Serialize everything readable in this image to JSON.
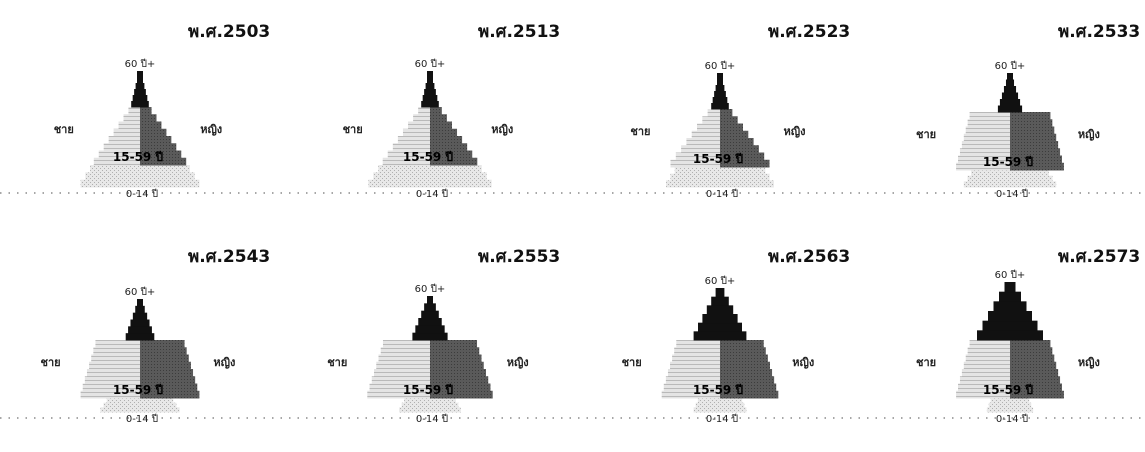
{
  "chart_data": [
    {
      "type": "bar",
      "title": "พ.ศ.2503",
      "labels": {
        "male": "ชาย",
        "female": "หญิง",
        "age_old": "60 ปี+",
        "age_working": "15-59 ปี",
        "age_young": "0-14 ปี"
      },
      "groups": [
        "0-14",
        "15-59",
        "60+"
      ],
      "values": [
        5.4,
        4.2,
        0.8
      ]
    },
    {
      "type": "bar",
      "title": "พ.ศ.2513",
      "labels": {
        "male": "ชาย",
        "female": "หญิง",
        "age_old": "60 ปี+",
        "age_working": "15-59 ปี",
        "age_young": "0-14 ปี"
      },
      "groups": [
        "0-14",
        "15-59",
        "60+"
      ],
      "values": [
        5.6,
        4.3,
        0.8
      ]
    },
    {
      "type": "bar",
      "title": "พ.ศ.2523",
      "labels": {
        "male": "ชาย",
        "female": "หญิง",
        "age_old": "60 ปี+",
        "age_working": "15-59 ปี",
        "age_young": "0-14 ปี"
      },
      "groups": [
        "0-14",
        "15-59",
        "60+"
      ],
      "values": [
        4.9,
        4.5,
        0.8
      ]
    },
    {
      "type": "bar",
      "title": "พ.ศ.2533",
      "labels": {
        "male": "ชาย",
        "female": "หญิง",
        "age_old": "60 ปี+",
        "age_working": "15-59 ปี",
        "age_young": "0-14 ปี"
      },
      "groups": [
        "0-14",
        "15-59",
        "60+"
      ],
      "values": [
        4.2,
        4.9,
        1.1
      ]
    },
    {
      "type": "bar",
      "title": "พ.ศ.2543",
      "labels": {
        "male": "ชาย",
        "female": "หญิง",
        "age_old": "60 ปี+",
        "age_working": "15-59 ปี",
        "age_young": "0-14 ปี"
      },
      "groups": [
        "0-14",
        "15-59",
        "60+"
      ],
      "values": [
        3.6,
        5.4,
        1.3
      ]
    },
    {
      "type": "bar",
      "title": "พ.ศ.2553",
      "labels": {
        "male": "ชาย",
        "female": "หญิง",
        "age_old": "60 ปี+",
        "age_working": "15-59 ปี",
        "age_young": "0-14 ปี"
      },
      "groups": [
        "0-14",
        "15-59",
        "60+"
      ],
      "values": [
        2.8,
        5.7,
        1.6
      ]
    },
    {
      "type": "bar",
      "title": "พ.ศ.2563",
      "labels": {
        "male": "ชาย",
        "female": "หญิง",
        "age_old": "60 ปี+",
        "age_working": "15-59 ปี",
        "age_young": "0-14 ปี"
      },
      "groups": [
        "0-14",
        "15-59",
        "60+"
      ],
      "values": [
        2.4,
        5.3,
        2.4
      ]
    },
    {
      "type": "bar",
      "title": "พ.ศ.2573",
      "labels": {
        "male": "ชาย",
        "female": "หญิง",
        "age_old": "60 ปี+",
        "age_working": "15-59 ปี",
        "age_young": "0-14 ปี"
      },
      "groups": [
        "0-14",
        "15-59",
        "60+"
      ],
      "values": [
        2.1,
        4.9,
        3.0
      ]
    }
  ],
  "colors": {
    "male": "#d2d2d2",
    "female": "#555555",
    "old": "#111111",
    "young": "#dcdcdc",
    "baseline": "#8a8a8a"
  }
}
